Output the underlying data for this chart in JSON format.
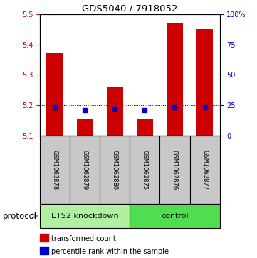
{
  "title": "GDS5040 / 7918052",
  "samples": [
    "GSM1062878",
    "GSM1062879",
    "GSM1062880",
    "GSM1062875",
    "GSM1062876",
    "GSM1062877"
  ],
  "red_tops": [
    5.37,
    5.155,
    5.26,
    5.155,
    5.47,
    5.45
  ],
  "blue_vals": [
    5.193,
    5.183,
    5.188,
    5.183,
    5.193,
    5.193
  ],
  "bar_bottom": 5.1,
  "ylim": [
    5.1,
    5.5
  ],
  "yticks": [
    5.1,
    5.2,
    5.3,
    5.4,
    5.5
  ],
  "right_yticks": [
    0,
    25,
    50,
    75,
    100
  ],
  "right_ylim": [
    0,
    100
  ],
  "red_color": "#cc0000",
  "blue_color": "#0000cc",
  "green_light": "#b0f0a0",
  "green_dark": "#50dd50",
  "label_area_color": "#c8c8c8",
  "bar_width": 0.55,
  "blue_marker_size": 4.5,
  "title_fontsize": 9.5,
  "tick_fontsize": 7,
  "sample_fontsize": 6,
  "group_fontsize": 8,
  "legend_fontsize": 7,
  "protocol_fontsize": 8.5
}
